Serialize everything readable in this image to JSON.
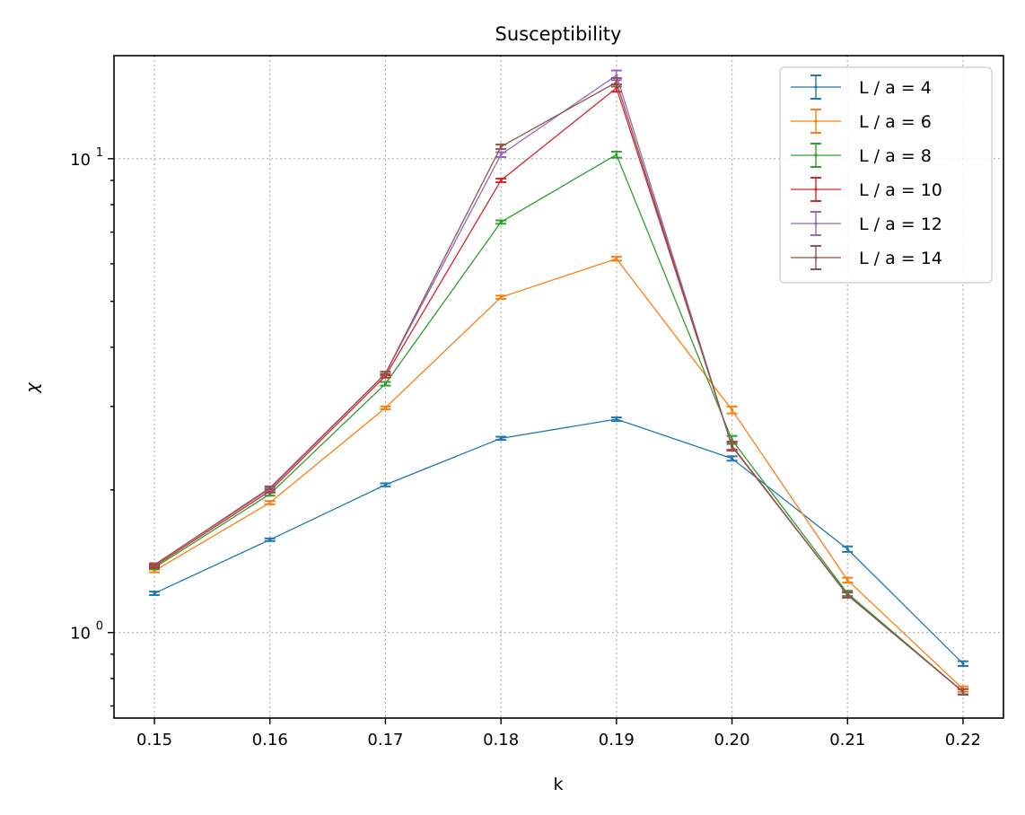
{
  "chart_data": {
    "type": "line",
    "title": "Susceptibility",
    "xlabel": "k",
    "ylabel": "χ",
    "yscale": "log",
    "xlim": [
      0.1465,
      0.2235
    ],
    "ylim": [
      0.66,
      16.5
    ],
    "xticks": [
      {
        "value": 0.15,
        "label": "0.15"
      },
      {
        "value": 0.16,
        "label": "0.16"
      },
      {
        "value": 0.17,
        "label": "0.17"
      },
      {
        "value": 0.18,
        "label": "0.18"
      },
      {
        "value": 0.19,
        "label": "0.19"
      },
      {
        "value": 0.2,
        "label": "0.20"
      },
      {
        "value": 0.21,
        "label": "0.21"
      },
      {
        "value": 0.22,
        "label": "0.22"
      }
    ],
    "yticks": [
      {
        "value": 1,
        "base": "10",
        "exp": "0"
      },
      {
        "value": 10,
        "base": "10",
        "exp": "1"
      }
    ],
    "grid": true,
    "legend_position": "top-right",
    "x": [
      0.15,
      0.16,
      0.17,
      0.18,
      0.19,
      0.2,
      0.21,
      0.22
    ],
    "series": [
      {
        "name": "L / a = 4",
        "color": "#1f77b4",
        "values": [
          1.21,
          1.57,
          2.05,
          2.57,
          2.82,
          2.33,
          1.5,
          0.86
        ],
        "errors": [
          0.01,
          0.01,
          0.015,
          0.02,
          0.025,
          0.025,
          0.02,
          0.01
        ]
      },
      {
        "name": "L / a = 6",
        "color": "#ff7f0e",
        "values": [
          1.35,
          1.88,
          2.98,
          5.1,
          6.15,
          2.95,
          1.29,
          0.76
        ],
        "errors": [
          0.01,
          0.015,
          0.02,
          0.04,
          0.06,
          0.05,
          0.015,
          0.01
        ]
      },
      {
        "name": "L / a = 8",
        "color": "#2ca02c",
        "values": [
          1.37,
          1.96,
          3.35,
          7.35,
          10.2,
          2.55,
          1.21,
          0.75
        ],
        "errors": [
          0.01,
          0.015,
          0.03,
          0.06,
          0.15,
          0.05,
          0.015,
          0.01
        ]
      },
      {
        "name": "L / a = 10",
        "color": "#d62728",
        "values": [
          1.38,
          1.99,
          3.48,
          9.0,
          14.1,
          2.48,
          1.2,
          0.75
        ],
        "errors": [
          0.01,
          0.015,
          0.03,
          0.08,
          0.25,
          0.05,
          0.015,
          0.01
        ]
      },
      {
        "name": "L / a = 12",
        "color": "#9467bd",
        "values": [
          1.39,
          2.01,
          3.52,
          10.2,
          15.0,
          2.47,
          1.2,
          0.75
        ],
        "errors": [
          0.01,
          0.015,
          0.03,
          0.12,
          0.35,
          0.05,
          0.015,
          0.01
        ]
      },
      {
        "name": "L / a = 14",
        "color": "#8c564b",
        "values": [
          1.39,
          2.02,
          3.52,
          10.6,
          14.5,
          2.47,
          1.2,
          0.75
        ],
        "errors": [
          0.01,
          0.015,
          0.03,
          0.12,
          0.3,
          0.05,
          0.015,
          0.01
        ]
      }
    ]
  }
}
